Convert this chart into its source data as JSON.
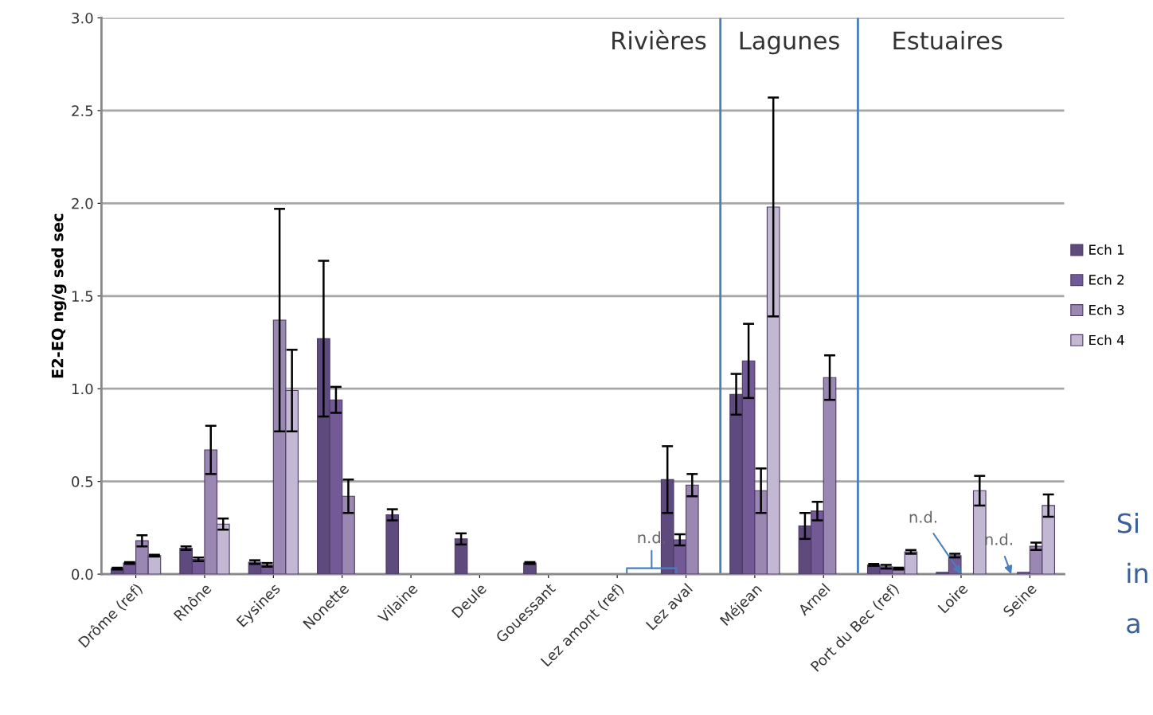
{
  "chart_data": {
    "type": "bar",
    "ylabel": "E2-EQ ng/g sed sec",
    "categories": [
      "Drôme (ref)",
      "Rhône",
      "Eysines",
      "Nonette",
      "Vilaine",
      "Deule",
      "Gouessant",
      "Lez amont (ref)",
      "Lez aval",
      "Méjean",
      "Arnel",
      "Port du Bec (ref)",
      "Loire",
      "Seine"
    ],
    "series": [
      {
        "name": "Ech 1",
        "color": "#5f4a7e",
        "values": [
          0.03,
          0.14,
          0.065,
          1.27,
          0.32,
          0.19,
          0.06,
          null,
          0.51,
          0.97,
          0.26,
          0.05,
          0.01,
          null
        ],
        "errors": [
          0.005,
          0.01,
          0.01,
          0.42,
          0.03,
          0.03,
          0.005,
          null,
          0.18,
          0.11,
          0.07,
          0.005,
          null,
          null
        ]
      },
      {
        "name": "Ech 2",
        "color": "#735a96",
        "values": [
          0.06,
          0.08,
          0.05,
          0.94,
          null,
          null,
          null,
          null,
          0.185,
          1.15,
          0.34,
          0.04,
          0.1,
          0.01
        ],
        "errors": [
          0.005,
          0.01,
          0.01,
          0.07,
          null,
          null,
          null,
          null,
          0.03,
          0.2,
          0.05,
          0.01,
          0.01,
          null
        ]
      },
      {
        "name": "Ech 3",
        "color": "#9a88b3",
        "values": [
          0.18,
          0.67,
          1.37,
          0.42,
          null,
          null,
          null,
          null,
          0.48,
          0.45,
          1.06,
          0.03,
          null,
          0.15
        ],
        "errors": [
          0.03,
          0.13,
          0.6,
          0.09,
          null,
          null,
          null,
          null,
          0.06,
          0.12,
          0.12,
          0.005,
          null,
          0.02
        ]
      },
      {
        "name": "Ech 4",
        "color": "#c3b8d3",
        "values": [
          0.1,
          0.27,
          0.99,
          null,
          null,
          null,
          null,
          null,
          null,
          1.98,
          null,
          0.12,
          0.45,
          0.37
        ],
        "errors": [
          0.005,
          0.03,
          0.22,
          null,
          null,
          null,
          null,
          null,
          null,
          0.59,
          null,
          0.01,
          0.08,
          0.06
        ]
      }
    ],
    "ylim": [
      0,
      3
    ],
    "yticks": [
      {
        "value": 0,
        "label": "0.0"
      },
      {
        "value": 0.5,
        "label": "0.5"
      },
      {
        "value": 1,
        "label": "1.0"
      },
      {
        "value": 1.5,
        "label": "1.5"
      },
      {
        "value": 2,
        "label": "2.0"
      },
      {
        "value": 2.5,
        "label": "2.5"
      },
      {
        "value": 3,
        "label": "3.0"
      }
    ],
    "annotations": [
      "Rivières",
      "Lagunes",
      "Estuaires",
      "n.d.",
      {
        "text": "n.d.",
        "x": "Loire",
        "y": 0
      },
      {
        "text": "n.d.",
        "x": "Seine",
        "y": 0
      },
      "Si",
      "in",
      "a"
    ],
    "grid": "y",
    "legend": "right"
  }
}
